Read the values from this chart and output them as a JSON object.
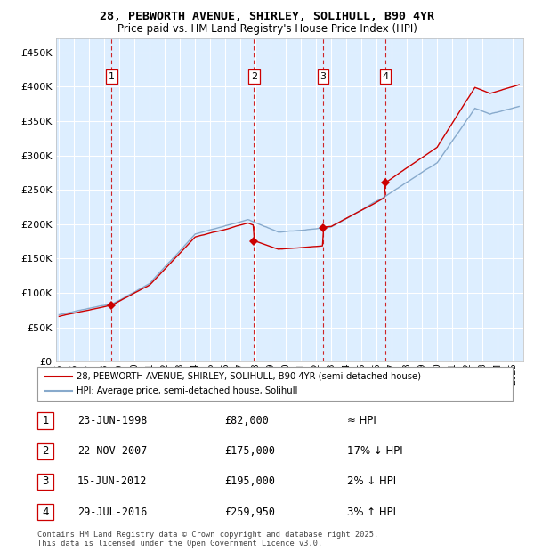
{
  "title1": "28, PEBWORTH AVENUE, SHIRLEY, SOLIHULL, B90 4YR",
  "title2": "Price paid vs. HM Land Registry's House Price Index (HPI)",
  "legend_line1": "28, PEBWORTH AVENUE, SHIRLEY, SOLIHULL, B90 4YR (semi-detached house)",
  "legend_line2": "HPI: Average price, semi-detached house, Solihull",
  "transactions": [
    {
      "num": 1,
      "date": "23-JUN-1998",
      "price": 82000,
      "hpi_rel": "≈ HPI",
      "x": 1998.47
    },
    {
      "num": 2,
      "date": "22-NOV-2007",
      "price": 175000,
      "hpi_rel": "17% ↓ HPI",
      "x": 2007.89
    },
    {
      "num": 3,
      "date": "15-JUN-2012",
      "price": 195000,
      "hpi_rel": "2% ↓ HPI",
      "x": 2012.46
    },
    {
      "num": 4,
      "date": "29-JUL-2016",
      "price": 259950,
      "hpi_rel": "3% ↑ HPI",
      "x": 2016.58
    }
  ],
  "footer": "Contains HM Land Registry data © Crown copyright and database right 2025.\nThis data is licensed under the Open Government Licence v3.0.",
  "line_color_red": "#cc0000",
  "line_color_blue": "#88aacc",
  "background_chart": "#ddeeff",
  "grid_color": "#ffffff",
  "vline_color": "#cc0000"
}
